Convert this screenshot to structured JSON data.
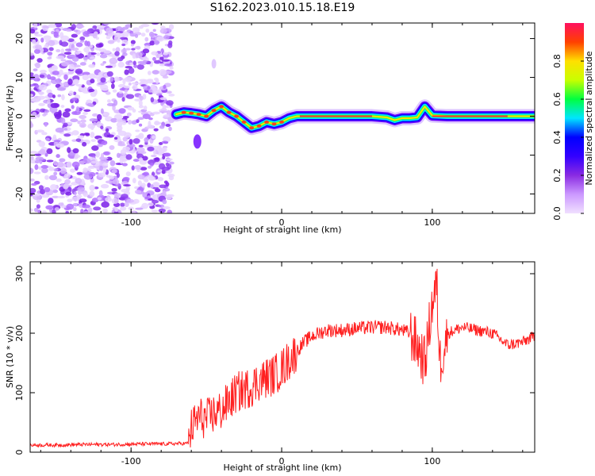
{
  "title": "S162.2023.010.15.18.E19",
  "chart_data": [
    {
      "type": "heatmap",
      "xlabel": "Height of straight line (km)",
      "ylabel": "Frequency (Hz)",
      "xlim": [
        -167,
        168
      ],
      "ylim": [
        -25,
        24
      ],
      "xticks": [
        -100,
        0,
        100
      ],
      "xtick_labels": [
        "-100",
        "0",
        "100"
      ],
      "yticks": [
        -20,
        -10,
        0,
        10,
        20
      ],
      "ytick_labels": [
        "-20",
        "-10",
        "0",
        "10",
        "20"
      ],
      "colorbar": {
        "label": "Normalized spectral amplitude",
        "range": [
          0,
          1
        ],
        "ticks": [
          0.0,
          0.2,
          0.4,
          0.6,
          0.8
        ],
        "tick_labels": [
          "0.0",
          "0.2",
          "0.4",
          "0.6",
          "0.8"
        ],
        "colormap": [
          "#f0e0ff",
          "#cc99ff",
          "#8a2be2",
          "#3300ff",
          "#0000ff",
          "#00e5ff",
          "#00ff40",
          "#c8ff00",
          "#ffe000",
          "#ff4000",
          "#ff1060"
        ]
      },
      "noise_region_x": [
        -167,
        -73
      ],
      "ridge": {
        "x": [
          -70,
          -65,
          -60,
          -55,
          -50,
          -45,
          -40,
          -35,
          -30,
          -25,
          -20,
          -15,
          -10,
          -5,
          0,
          5,
          10,
          20,
          40,
          60,
          70,
          75,
          80,
          85,
          90,
          95,
          100,
          110,
          130,
          150,
          168
        ],
        "y": [
          0.5,
          1.0,
          0.8,
          0.5,
          0.0,
          1.5,
          2.5,
          1.0,
          0.0,
          -1.5,
          -3.0,
          -2.5,
          -1.5,
          -2.0,
          -1.5,
          -0.5,
          0.0,
          0.0,
          0.0,
          0.0,
          -0.3,
          -1.0,
          -0.5,
          -0.5,
          -0.3,
          2.5,
          0.2,
          0.0,
          0.0,
          0.0,
          0.0
        ]
      },
      "blob": {
        "x": -56,
        "y": -6.5
      }
    },
    {
      "type": "line",
      "xlabel": "Height of straight line (km)",
      "ylabel": "SNR (10 * v/v)",
      "xlim": [
        -167,
        168
      ],
      "ylim": [
        0,
        320
      ],
      "xticks": [
        -100,
        0,
        100
      ],
      "xtick_labels": [
        "-100",
        "0",
        "100"
      ],
      "yticks": [
        0,
        100,
        200,
        300
      ],
      "ytick_labels": [
        "0",
        "100",
        "200",
        "300"
      ],
      "color": "#ff2020",
      "x": [
        -167,
        -150,
        -130,
        -110,
        -90,
        -75,
        -62,
        -60,
        -55,
        -50,
        -45,
        -40,
        -35,
        -30,
        -25,
        -20,
        -15,
        -10,
        -5,
        0,
        5,
        10,
        15,
        20,
        25,
        30,
        40,
        50,
        60,
        70,
        80,
        85,
        90,
        95,
        100,
        103,
        105,
        110,
        120,
        130,
        140,
        150,
        160,
        168
      ],
      "y": [
        12,
        12,
        13,
        13,
        14,
        14,
        15,
        40,
        60,
        55,
        65,
        70,
        85,
        100,
        105,
        110,
        120,
        125,
        130,
        140,
        155,
        170,
        185,
        195,
        200,
        205,
        205,
        208,
        210,
        210,
        205,
        200,
        180,
        150,
        250,
        280,
        150,
        200,
        210,
        205,
        200,
        180,
        185,
        195
      ]
    }
  ]
}
